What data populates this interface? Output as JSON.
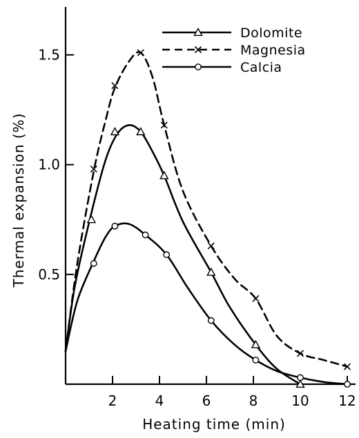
{
  "chart_data": {
    "type": "line",
    "xlabel": "Heating time (min)",
    "ylabel": "Thermal expansion (%)",
    "xlim": [
      0,
      12.5
    ],
    "ylim": [
      0,
      1.75
    ],
    "x_ticks": [
      2,
      4,
      6,
      8,
      10,
      12
    ],
    "y_ticks": [
      0.5,
      1.0,
      1.5
    ],
    "x_tick_labels": [
      "2",
      "4",
      "6",
      "8",
      "10",
      "12"
    ],
    "y_tick_labels": [
      "0.5",
      "1.0",
      "1.5"
    ],
    "grid": false,
    "legend_position": "top-right",
    "series": [
      {
        "name": "Dolomite",
        "marker": "triangle",
        "line_style": "solid",
        "points": [
          [
            1.1,
            0.75
          ],
          [
            2.1,
            1.15
          ],
          [
            3.2,
            1.15
          ],
          [
            4.2,
            0.95
          ],
          [
            6.2,
            0.51
          ],
          [
            8.1,
            0.18
          ],
          [
            10.0,
            0.0
          ]
        ],
        "curve": [
          [
            0,
            0.15
          ],
          [
            0.4,
            0.45
          ],
          [
            1.1,
            0.78
          ],
          [
            1.7,
            1.02
          ],
          [
            2.2,
            1.14
          ],
          [
            2.7,
            1.18
          ],
          [
            3.2,
            1.15
          ],
          [
            3.7,
            1.06
          ],
          [
            4.2,
            0.95
          ],
          [
            5.0,
            0.74
          ],
          [
            6.2,
            0.51
          ],
          [
            7.0,
            0.35
          ],
          [
            8.1,
            0.18
          ],
          [
            9.0,
            0.07
          ],
          [
            10.0,
            0.0
          ]
        ]
      },
      {
        "name": "Magnesia",
        "marker": "x",
        "line_style": "dashed",
        "points": [
          [
            1.2,
            0.98
          ],
          [
            2.1,
            1.36
          ],
          [
            3.2,
            1.51
          ],
          [
            4.2,
            1.18
          ],
          [
            6.2,
            0.63
          ],
          [
            8.1,
            0.39
          ],
          [
            10.0,
            0.14
          ],
          [
            12.0,
            0.08
          ]
        ],
        "curve": [
          [
            0,
            0.15
          ],
          [
            0.5,
            0.55
          ],
          [
            1.2,
            0.97
          ],
          [
            1.7,
            1.2
          ],
          [
            2.1,
            1.35
          ],
          [
            2.7,
            1.47
          ],
          [
            3.2,
            1.51
          ],
          [
            3.7,
            1.4
          ],
          [
            4.2,
            1.18
          ],
          [
            5.0,
            0.88
          ],
          [
            6.2,
            0.63
          ],
          [
            7.2,
            0.48
          ],
          [
            8.1,
            0.39
          ],
          [
            9.0,
            0.22
          ],
          [
            10.0,
            0.14
          ],
          [
            11.0,
            0.11
          ],
          [
            12.0,
            0.08
          ]
        ]
      },
      {
        "name": "Calcia",
        "marker": "circle",
        "line_style": "solid",
        "points": [
          [
            1.2,
            0.55
          ],
          [
            2.1,
            0.72
          ],
          [
            3.4,
            0.68
          ],
          [
            4.3,
            0.59
          ],
          [
            6.2,
            0.29
          ],
          [
            8.1,
            0.11
          ],
          [
            10.0,
            0.03
          ],
          [
            12.0,
            0.0
          ]
        ],
        "curve": [
          [
            0,
            0.15
          ],
          [
            0.5,
            0.38
          ],
          [
            1.2,
            0.56
          ],
          [
            1.7,
            0.67
          ],
          [
            2.1,
            0.72
          ],
          [
            2.7,
            0.73
          ],
          [
            3.4,
            0.68
          ],
          [
            4.3,
            0.59
          ],
          [
            5.2,
            0.44
          ],
          [
            6.2,
            0.29
          ],
          [
            7.2,
            0.18
          ],
          [
            8.1,
            0.11
          ],
          [
            9.0,
            0.06
          ],
          [
            10.0,
            0.03
          ],
          [
            11.0,
            0.01
          ],
          [
            12.0,
            0.0
          ]
        ]
      }
    ]
  }
}
